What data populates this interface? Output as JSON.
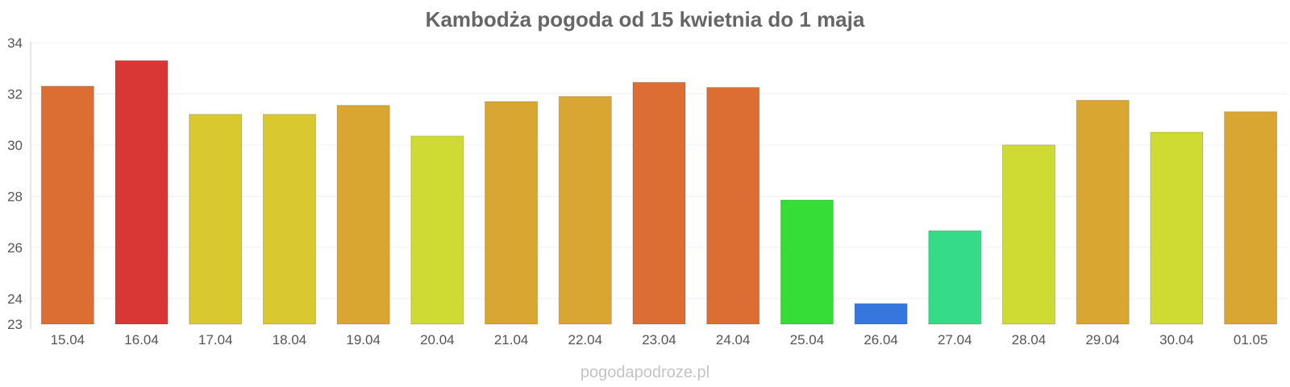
{
  "chart_data": {
    "type": "bar",
    "title": "Kambodża pogoda od 15 kwietnia do 1 maja",
    "xlabel": "",
    "ylabel": "",
    "categories": [
      "15.04",
      "16.04",
      "17.04",
      "18.04",
      "19.04",
      "20.04",
      "21.04",
      "22.04",
      "23.04",
      "24.04",
      "25.04",
      "26.04",
      "27.04",
      "28.04",
      "29.04",
      "30.04",
      "01.05"
    ],
    "values": [
      32.3,
      33.3,
      31.2,
      31.2,
      31.55,
      30.35,
      31.7,
      31.9,
      32.45,
      32.25,
      27.85,
      23.8,
      26.65,
      30.0,
      31.75,
      30.5,
      31.3
    ],
    "colors": [
      "#dd6e33",
      "#d93636",
      "#dac830",
      "#dac830",
      "#daa632",
      "#cfdb33",
      "#daa632",
      "#daa632",
      "#dd6e33",
      "#dd6e33",
      "#36dd36",
      "#3677dd",
      "#36db87",
      "#cfdb33",
      "#daa632",
      "#cfdb33",
      "#daa632"
    ],
    "ylim": [
      23,
      34
    ],
    "yticks": [
      23,
      24,
      26,
      28,
      30,
      32,
      34
    ],
    "grid": true,
    "legend": "none"
  },
  "watermark": "pogodapodroze.pl"
}
